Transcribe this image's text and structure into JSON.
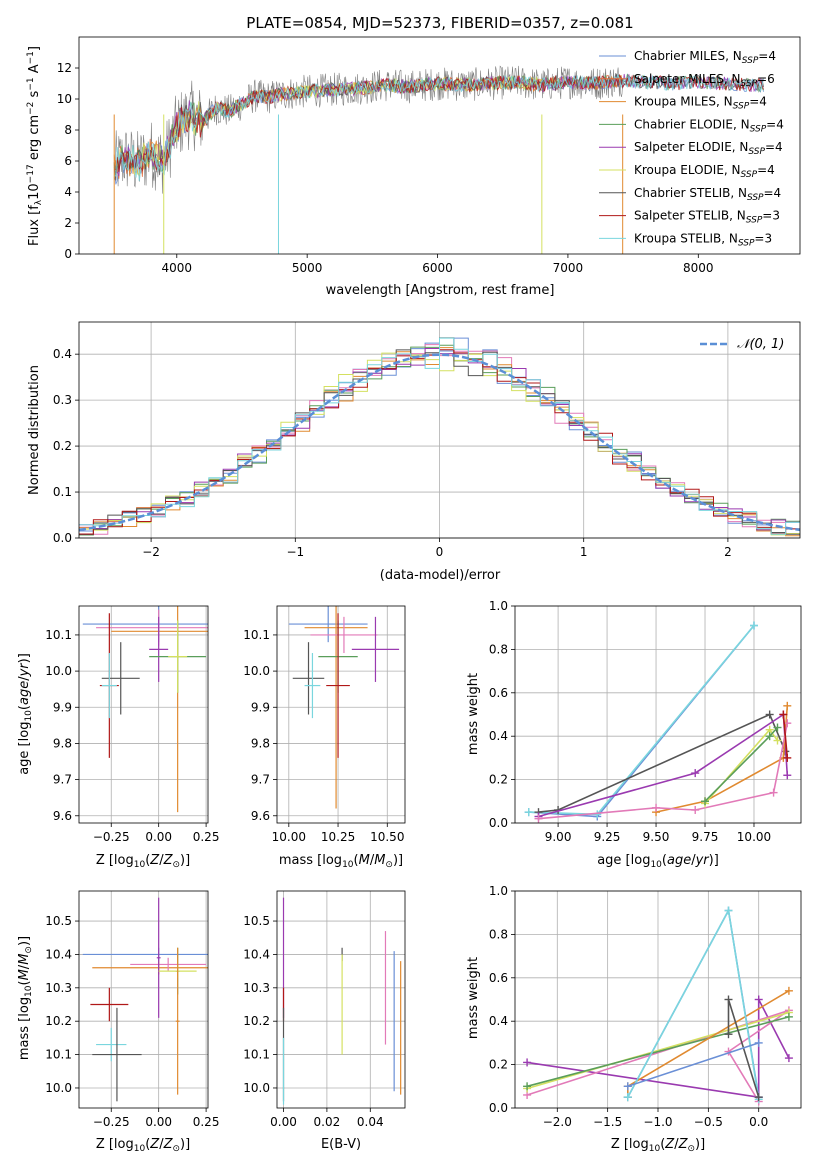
{
  "colors": {
    "chabrier_miles": "#6a8fd6",
    "salpeter_miles": "#e06a3a",
    "kroupa_miles": "#e08a30",
    "chabrier_elodie": "#5a9e5a",
    "salpeter_elodie": "#9a3ab0",
    "kroupa_elodie": "#d4e060",
    "chabrier_stelib": "#555555",
    "salpeter_stelib": "#b01818",
    "kroupa_stelib": "#7ad6de",
    "salpeter_pink": "#e27ab8",
    "gaussian": "#5b8fd6",
    "grid": "#b0b0b0",
    "spectrum": "#808080"
  },
  "chart_data": [
    {
      "id": "spectrum",
      "type": "line",
      "title": "PLATE=0854, MJD=52373, FIBERID=0357, z=0.081",
      "xlabel": "wavelength [Angstrom, rest frame]",
      "ylabel": "Flux [f_λ 10^-17 erg cm^-2 s^-1 A^-1]",
      "xlim": [
        3250,
        8780
      ],
      "ylim": [
        0,
        14
      ],
      "xticks": [
        4000,
        5000,
        6000,
        7000,
        8000
      ],
      "yticks": [
        0,
        2,
        4,
        6,
        8,
        10,
        12
      ],
      "grid": false,
      "legend_position": "right",
      "legend": [
        "Chabrier MILES, N_SSP=4",
        "Salpeter MILES, N_SSP=6",
        "Kroupa MILES, N_SSP=4",
        "Chabrier ELODIE, N_SSP=4",
        "Salpeter ELODIE, N_SSP=4",
        "Kroupa ELODIE, N_SSP=4",
        "Chabrier STELIB, N_SSP=4",
        "Salpeter STELIB, N_SSP=3",
        "Kroupa STELIB, N_SSP=3"
      ],
      "model_envelope": {
        "x": [
          3500,
          3600,
          3700,
          3800,
          3900,
          4000,
          4100,
          4200,
          4300,
          4400,
          4500,
          4600,
          4700,
          4800,
          5000,
          5200,
          5400,
          5600,
          5800,
          6000,
          6200,
          6400,
          6600,
          6800,
          7000,
          7200,
          7400,
          7600,
          7800,
          8000,
          8200,
          8400,
          8500
        ],
        "y": [
          5.5,
          6.2,
          5.8,
          6.5,
          6.0,
          8.2,
          9.0,
          8.6,
          9.4,
          9.2,
          9.7,
          10.2,
          10.1,
          10.3,
          10.5,
          10.6,
          10.7,
          10.9,
          10.8,
          11.0,
          10.9,
          11.0,
          11.1,
          10.9,
          11.1,
          11.0,
          11.2,
          11.1,
          11.0,
          11.1,
          11.0,
          10.9,
          10.9
        ]
      }
    },
    {
      "id": "residuals",
      "type": "histogram",
      "xlabel": "(data-model)/error",
      "ylabel": "Normed distribution",
      "xlim": [
        -2.5,
        2.5
      ],
      "ylim": [
        0,
        0.47
      ],
      "xticks": [
        -2,
        -1,
        0,
        1,
        2
      ],
      "yticks": [
        0.0,
        0.1,
        0.2,
        0.3,
        0.4
      ],
      "grid": true,
      "legend_position": "top-right",
      "legend": [
        "N(0,1)"
      ],
      "bin_width": 0.1,
      "series": [
        {
          "color_key": "chabrier_miles",
          "values": [
            0.02,
            0.03,
            0.03,
            0.04,
            0.05,
            0.06,
            0.06,
            0.07,
            0.09,
            0.1,
            0.12,
            0.13,
            0.14,
            0.15,
            0.17,
            0.19,
            0.2,
            0.22,
            0.24,
            0.26,
            0.28,
            0.29,
            0.31,
            0.32,
            0.34,
            0.35,
            0.36,
            0.37,
            0.38,
            0.39,
            0.4,
            0.4,
            0.41,
            0.4,
            0.4,
            0.39,
            0.38,
            0.37,
            0.36,
            0.35,
            0.33,
            0.32,
            0.3,
            0.28,
            0.27,
            0.25,
            0.23,
            0.21,
            0.19,
            0.17,
            0.15,
            0.14,
            0.12,
            0.11,
            0.09,
            0.08,
            0.07,
            0.06,
            0.05,
            0.05,
            0.04,
            0.03,
            0.03,
            0.02,
            0.02,
            0.02,
            0.01,
            0.01,
            0.01,
            0.01
          ]
        },
        {
          "color_key": "salpeter_pink",
          "values": [
            0.03,
            0.03,
            0.04,
            0.04,
            0.05,
            0.06,
            0.07,
            0.08,
            0.09,
            0.1,
            0.12,
            0.13,
            0.14,
            0.15,
            0.17,
            0.19,
            0.21,
            0.22,
            0.24,
            0.26,
            0.28,
            0.3,
            0.31,
            0.33,
            0.34,
            0.35,
            0.37,
            0.38,
            0.39,
            0.4,
            0.41,
            0.41,
            0.42,
            0.41,
            0.4,
            0.4,
            0.39,
            0.37,
            0.36,
            0.34,
            0.33,
            0.31,
            0.29,
            0.28,
            0.26,
            0.24,
            0.22,
            0.2,
            0.18,
            0.16,
            0.15,
            0.13,
            0.12,
            0.1,
            0.09,
            0.08,
            0.07,
            0.06,
            0.05,
            0.05,
            0.04,
            0.03,
            0.03,
            0.02,
            0.02,
            0.02,
            0.01,
            0.01,
            0.01,
            0.01
          ]
        }
      ],
      "gaussian": {
        "mean": 0,
        "sigma": 1
      }
    },
    {
      "id": "age-vs-z",
      "type": "errorbar",
      "xlabel": "Z [log10(Z/Z_sun)]",
      "ylabel": "age [log10(age/yr)]",
      "xlim": [
        -0.42,
        0.26
      ],
      "ylim": [
        9.58,
        10.18
      ],
      "xticks": [
        -0.25,
        0.0,
        0.25
      ],
      "yticks": [
        9.6,
        9.7,
        9.8,
        9.9,
        10.0,
        10.1
      ],
      "grid": true,
      "points": [
        {
          "color_key": "chabrier_miles",
          "x": 0.0,
          "xerr": 0.4,
          "y": 10.13,
          "yerr": 0.05
        },
        {
          "color_key": "kroupa_miles",
          "x": 0.1,
          "xerr": 0.35,
          "y": 10.11,
          "yerr": 0.5
        },
        {
          "color_key": "salpeter_pink",
          "x": 0.0,
          "xerr": 0.33,
          "y": 10.12,
          "yerr": 0.05
        },
        {
          "color_key": "salpeter_elodie",
          "x": 0.0,
          "xerr": 0.05,
          "y": 10.06,
          "yerr": 0.09
        },
        {
          "color_key": "chabrier_elodie",
          "x": 0.1,
          "xerr": 0.15,
          "y": 10.04,
          "yerr": 0.1
        },
        {
          "color_key": "kroupa_elodie",
          "x": 0.1,
          "xerr": 0.05,
          "y": 10.04,
          "yerr": 0.1
        },
        {
          "color_key": "chabrier_stelib",
          "x": -0.2,
          "xerr": 0.1,
          "y": 9.98,
          "yerr": 0.1
        },
        {
          "color_key": "salpeter_stelib",
          "x": -0.26,
          "xerr": 0.05,
          "y": 9.96,
          "yerr": 0.2
        },
        {
          "color_key": "kroupa_stelib",
          "x": -0.26,
          "xerr": 0.04,
          "y": 9.96,
          "yerr": 0.09
        }
      ]
    },
    {
      "id": "age-vs-mass",
      "type": "errorbar",
      "xlabel": "mass [log10(M/M_sun)]",
      "ylabel": "",
      "xlim": [
        9.94,
        10.59
      ],
      "ylim": [
        9.58,
        10.18
      ],
      "xticks": [
        10.0,
        10.25,
        10.5
      ],
      "yticks": [
        9.6,
        9.7,
        9.8,
        9.9,
        10.0,
        10.1
      ],
      "grid": true,
      "points": [
        {
          "color_key": "chabrier_miles",
          "x": 10.2,
          "xerr": 0.2,
          "y": 10.13,
          "yerr": 0.05
        },
        {
          "color_key": "kroupa_miles",
          "x": 10.24,
          "xerr": 0.16,
          "y": 10.12,
          "yerr": 0.5
        },
        {
          "color_key": "salpeter_pink",
          "x": 10.28,
          "xerr": 0.17,
          "y": 10.1,
          "yerr": 0.05
        },
        {
          "color_key": "salpeter_elodie",
          "x": 10.44,
          "xerr": 0.12,
          "y": 10.06,
          "yerr": 0.09
        },
        {
          "color_key": "chabrier_elodie",
          "x": 10.25,
          "xerr": 0.1,
          "y": 10.04,
          "yerr": 0.1
        },
        {
          "color_key": "chabrier_stelib",
          "x": 10.1,
          "xerr": 0.08,
          "y": 9.98,
          "yerr": 0.1
        },
        {
          "color_key": "salpeter_stelib",
          "x": 10.25,
          "xerr": 0.06,
          "y": 9.96,
          "yerr": 0.2
        },
        {
          "color_key": "kroupa_stelib",
          "x": 10.12,
          "xerr": 0.04,
          "y": 9.96,
          "yerr": 0.09
        }
      ]
    },
    {
      "id": "weight-vs-age",
      "type": "line",
      "xlabel": "age [log10(age/yr)]",
      "ylabel": "mass weight",
      "xlim": [
        8.78,
        10.24
      ],
      "ylim": [
        0,
        1.0
      ],
      "xticks": [
        9.0,
        9.25,
        9.5,
        9.75,
        10.0
      ],
      "yticks": [
        0.0,
        0.2,
        0.4,
        0.6,
        0.8,
        1.0
      ],
      "grid": true,
      "series": [
        {
          "color_key": "chabrier_miles",
          "x": [
            8.85,
            9.2,
            10.0
          ],
          "y": [
            0.05,
            0.03,
            0.91
          ]
        },
        {
          "color_key": "kroupa_stelib",
          "x": [
            8.85,
            9.2,
            10.0
          ],
          "y": [
            0.05,
            0.04,
            0.91
          ]
        },
        {
          "color_key": "chabrier_stelib",
          "x": [
            8.9,
            9.0,
            10.08,
            10.16
          ],
          "y": [
            0.05,
            0.06,
            0.5,
            0.33
          ]
        },
        {
          "color_key": "salpeter_elodie",
          "x": [
            8.9,
            9.7,
            10.15,
            10.17
          ],
          "y": [
            0.03,
            0.23,
            0.5,
            0.22
          ]
        },
        {
          "color_key": "kroupa_miles",
          "x": [
            9.5,
            9.75,
            10.15,
            10.17
          ],
          "y": [
            0.05,
            0.1,
            0.3,
            0.54
          ]
        },
        {
          "color_key": "salpeter_pink",
          "x": [
            8.9,
            9.5,
            9.7,
            10.1,
            10.17
          ],
          "y": [
            0.02,
            0.07,
            0.06,
            0.14,
            0.46
          ]
        },
        {
          "color_key": "kroupa_elodie",
          "x": [
            9.75,
            10.08,
            10.12
          ],
          "y": [
            0.09,
            0.43,
            0.38
          ]
        },
        {
          "color_key": "chabrier_elodie",
          "x": [
            9.75,
            10.08,
            10.12
          ],
          "y": [
            0.1,
            0.4,
            0.44
          ]
        },
        {
          "color_key": "salpeter_stelib",
          "x": [
            10.15,
            10.17
          ],
          "y": [
            0.5,
            0.3
          ]
        }
      ]
    },
    {
      "id": "mass-vs-z",
      "type": "errorbar",
      "xlabel": "Z [log10(Z/Z_sun)]",
      "ylabel": "mass [log10(M/M_sun)]",
      "xlim": [
        -0.42,
        0.26
      ],
      "ylim": [
        9.94,
        10.59
      ],
      "xticks": [
        -0.25,
        0.0,
        0.25
      ],
      "yticks": [
        10.0,
        10.1,
        10.2,
        10.3,
        10.4,
        10.5
      ],
      "grid": true,
      "points": [
        {
          "color_key": "chabrier_miles",
          "x": 0.0,
          "xerr": 0.4,
          "y": 10.4,
          "yerr": 0.02
        },
        {
          "color_key": "kroupa_miles",
          "x": 0.0,
          "xerr": 0.35,
          "y": 10.36,
          "yerr": 0.02
        },
        {
          "color_key": "salpeter_pink",
          "x": 0.05,
          "xerr": 0.2,
          "y": 10.37,
          "yerr": 0.02
        },
        {
          "color_key": "salpeter_elodie",
          "x": 0.0,
          "xerr": 0.01,
          "y": 10.39,
          "yerr": 0.18
        },
        {
          "color_key": "chabrier_elodie",
          "x": 0.1,
          "xerr": 0.01,
          "y": 10.35,
          "yerr": 0.07
        },
        {
          "color_key": "kroupa_elodie",
          "x": 0.1,
          "xerr": 0.1,
          "y": 10.35,
          "yerr": 0.02
        },
        {
          "color_key": "kroupa_miles",
          "x": 0.1,
          "xerr": 0.01,
          "y": 10.2,
          "yerr": 0.22
        },
        {
          "color_key": "salpeter_stelib",
          "x": -0.26,
          "xerr": 0.1,
          "y": 10.25,
          "yerr": 0.05
        },
        {
          "color_key": "kroupa_stelib",
          "x": -0.25,
          "xerr": 0.08,
          "y": 10.13,
          "yerr": 0.05
        },
        {
          "color_key": "chabrier_stelib",
          "x": -0.22,
          "xerr": 0.13,
          "y": 10.1,
          "yerr": 0.14
        }
      ]
    },
    {
      "id": "mass-vs-ebv",
      "type": "errorbar",
      "xlabel": "E(B-V)",
      "ylabel": "",
      "xlim": [
        -0.003,
        0.056
      ],
      "ylim": [
        9.94,
        10.59
      ],
      "xticks": [
        0.0,
        0.02,
        0.04
      ],
      "yticks": [
        10.0,
        10.1,
        10.2,
        10.3,
        10.4,
        10.5
      ],
      "grid": true,
      "points": [
        {
          "color_key": "salpeter_elodie",
          "x": 0.0,
          "y": 10.39,
          "yerr": 0.18
        },
        {
          "color_key": "salpeter_stelib",
          "x": 0.0,
          "y": 10.25,
          "yerr": 0.05
        },
        {
          "color_key": "chabrier_stelib",
          "x": 0.0,
          "y": 10.1,
          "yerr": 0.14
        },
        {
          "color_key": "kroupa_stelib",
          "x": 0.0,
          "y": 10.05,
          "yerr": 0.1
        },
        {
          "color_key": "chabrier_stelib",
          "x": 0.027,
          "y": 10.4,
          "yerr": 0.02
        },
        {
          "color_key": "kroupa_elodie",
          "x": 0.027,
          "y": 10.25,
          "yerr": 0.15
        },
        {
          "color_key": "salpeter_pink",
          "x": 0.047,
          "y": 10.3,
          "yerr": 0.17
        },
        {
          "color_key": "chabrier_miles",
          "x": 0.051,
          "y": 10.2,
          "yerr": 0.21
        },
        {
          "color_key": "kroupa_miles",
          "x": 0.054,
          "y": 10.18,
          "yerr": 0.2
        }
      ]
    },
    {
      "id": "weight-vs-z",
      "type": "line",
      "xlabel": "Z [log10(Z/Z_sun)]",
      "ylabel": "mass weight",
      "xlim": [
        -2.42,
        0.42
      ],
      "ylim": [
        0,
        1.0
      ],
      "xticks": [
        -2.0,
        -1.5,
        -1.0,
        -0.5,
        0.0
      ],
      "yticks": [
        0.0,
        0.2,
        0.4,
        0.6,
        0.8,
        1.0
      ],
      "grid": true,
      "series": [
        {
          "color_key": "salpeter_elodie",
          "x": [
            -2.3,
            0.0,
            0.0,
            0.3
          ],
          "y": [
            0.21,
            0.05,
            0.5,
            0.23
          ]
        },
        {
          "color_key": "salpeter_pink",
          "x": [
            -2.3,
            0.3,
            -0.3,
            0.0
          ],
          "y": [
            0.06,
            0.45,
            0.26,
            0.03
          ]
        },
        {
          "color_key": "kroupa_elodie",
          "x": [
            -2.3,
            0.3
          ],
          "y": [
            0.09,
            0.44
          ]
        },
        {
          "color_key": "chabrier_elodie",
          "x": [
            -2.3,
            0.3
          ],
          "y": [
            0.1,
            0.42
          ]
        },
        {
          "color_key": "kroupa_miles",
          "x": [
            -1.3,
            -1.3,
            0.3
          ],
          "y": [
            0.05,
            0.1,
            0.54
          ]
        },
        {
          "color_key": "chabrier_miles",
          "x": [
            -1.3,
            -0.3,
            0.0
          ],
          "y": [
            0.05,
            0.91,
            0.05
          ]
        },
        {
          "color_key": "kroupa_stelib",
          "x": [
            -1.3,
            -0.3,
            0.0
          ],
          "y": [
            0.05,
            0.91,
            0.04
          ]
        },
        {
          "color_key": "chabrier_stelib",
          "x": [
            -0.3,
            -0.3,
            0.0
          ],
          "y": [
            0.34,
            0.5,
            0.05
          ]
        },
        {
          "color_key": "chabrier_miles",
          "x": [
            -1.3,
            0.0
          ],
          "y": [
            0.1,
            0.3
          ]
        }
      ]
    }
  ]
}
